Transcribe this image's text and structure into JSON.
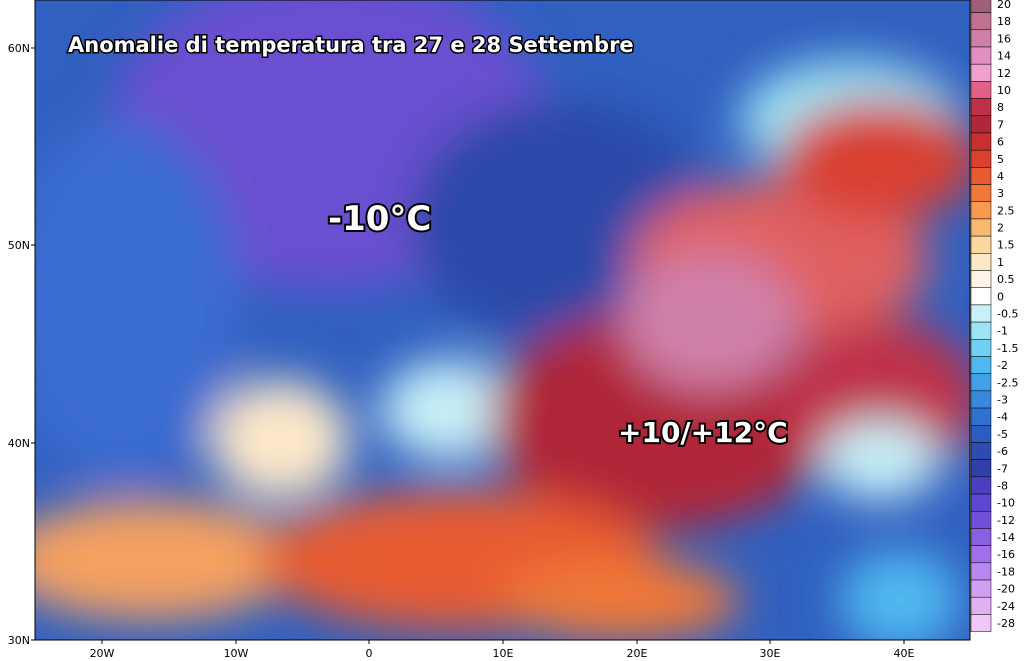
{
  "map": {
    "title": "Anomalie di temperatura tra 27 e 28 Settembre",
    "annotations": [
      "-10°C",
      "+10/+12°C"
    ],
    "lat_labels": [
      "60N",
      "50N",
      "40N",
      "30N"
    ],
    "lon_labels": [
      "20W",
      "10W",
      "0",
      "10E",
      "20E",
      "30E",
      "40E"
    ],
    "colorbar": {
      "levels": [
        20,
        18,
        16,
        14,
        12,
        10,
        8,
        7,
        6,
        5,
        4,
        3,
        2.5,
        2,
        1.5,
        1,
        0.5,
        0,
        -0.5,
        -1,
        -1.5,
        -2,
        -2.5,
        -3,
        -4,
        -5,
        -6,
        -7,
        -8,
        -10,
        -12,
        -14,
        -16,
        -18,
        -20,
        -24,
        -28
      ],
      "colors": [
        "#a0607a",
        "#c07090",
        "#d080a8",
        "#e090c0",
        "#f0a0d0",
        "#e06088",
        "#c03048",
        "#b02838",
        "#c83030",
        "#d84030",
        "#e85c30",
        "#f07838",
        "#f59a50",
        "#f8b870",
        "#fad8a0",
        "#fde8c8",
        "#fff4e8",
        "#ffffff",
        "#c8f0f8",
        "#9ce4f4",
        "#70d0f0",
        "#50b8f0",
        "#40a0e8",
        "#3888e0",
        "#3070d0",
        "#2c5cc0",
        "#2c4cb0",
        "#3040a8",
        "#4840c0",
        "#5c48d0",
        "#7050d8",
        "#8860e0",
        "#a070e8",
        "#b888f0",
        "#d0a0f0",
        "#e0b0f0",
        "#f0c8f8"
      ]
    }
  }
}
